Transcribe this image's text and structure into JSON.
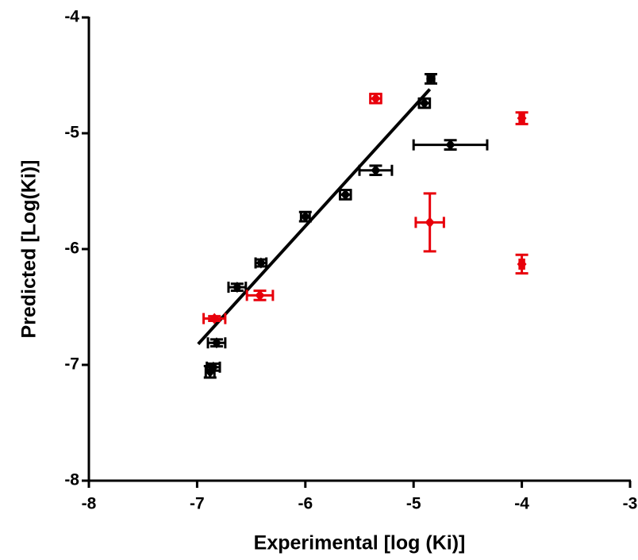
{
  "chart_data": {
    "type": "scatter",
    "xlabel": "Experimental [log (Ki)]",
    "ylabel": "Predicted [Log(Ki)]",
    "xlim": [
      -8,
      -3
    ],
    "xticks": [
      -8,
      -7,
      -6,
      -5,
      -4,
      -3
    ],
    "ylim": [
      -8,
      -4
    ],
    "yticks": [
      -8,
      -7,
      -6,
      -5,
      -4
    ],
    "series": [
      {
        "color": "#000000",
        "x": [
          -4.84,
          -4.9,
          -4.66,
          -5.35,
          -5.63,
          -6.0,
          -6.41,
          -6.63,
          -6.82,
          -6.85,
          -6.88
        ],
        "y": [
          -4.53,
          -4.74,
          -5.1,
          -5.32,
          -5.53,
          -5.72,
          -6.12,
          -6.33,
          -6.81,
          -7.02,
          -7.06
        ],
        "xerr": [
          0.03,
          0.05,
          0.34,
          0.15,
          0.05,
          0.04,
          0.05,
          0.08,
          0.08,
          0.06,
          0.04
        ],
        "yerr": [
          0.04,
          0.04,
          0.04,
          0.04,
          0.04,
          0.04,
          0.03,
          0.03,
          0.03,
          0.03,
          0.05
        ]
      },
      {
        "color": "#e8000b",
        "x": [
          -5.35,
          -4.0,
          -4.85,
          -4.0,
          -6.42,
          -6.84
        ],
        "y": [
          -4.7,
          -4.87,
          -5.77,
          -6.13,
          -6.4,
          -6.6
        ],
        "xerr": [
          0.05,
          0.02,
          0.13,
          0.02,
          0.12,
          0.1
        ],
        "yerr": [
          0.04,
          0.05,
          0.25,
          0.08,
          0.04,
          0.02
        ]
      }
    ],
    "fit_line": {
      "color": "#000000",
      "x": [
        -6.99,
        -4.85
      ],
      "y": [
        -6.82,
        -4.62
      ]
    }
  }
}
